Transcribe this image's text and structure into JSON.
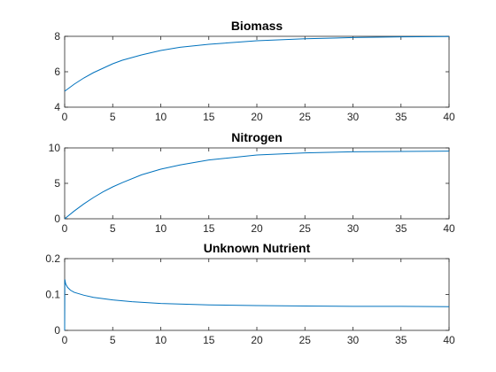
{
  "figure": {
    "background": "#ffffff",
    "axis_color": "#262626",
    "series_color": "#0072BD"
  },
  "chart_data": [
    {
      "type": "line",
      "title": "Biomass",
      "xlabel": "",
      "ylabel": "",
      "xlim": [
        0,
        40
      ],
      "ylim": [
        4,
        8
      ],
      "xticks": [
        0,
        5,
        10,
        15,
        20,
        25,
        30,
        35,
        40
      ],
      "xtick_labels": [
        "0",
        "5",
        "10",
        "15",
        "20",
        "25",
        "30",
        "35",
        "40"
      ],
      "yticks": [
        4,
        6,
        8
      ],
      "ytick_labels": [
        "4",
        "6",
        "8"
      ],
      "grid": false,
      "series": [
        {
          "x": [
            0,
            1,
            2,
            3,
            4,
            5,
            6,
            8,
            10,
            12,
            15,
            20,
            25,
            30,
            35,
            40
          ],
          "y": [
            4.9,
            5.3,
            5.65,
            5.95,
            6.2,
            6.45,
            6.65,
            6.95,
            7.2,
            7.38,
            7.55,
            7.75,
            7.86,
            7.93,
            7.97,
            7.99
          ]
        }
      ]
    },
    {
      "type": "line",
      "title": "Nitrogen",
      "xlabel": "",
      "ylabel": "",
      "xlim": [
        0,
        40
      ],
      "ylim": [
        0,
        10
      ],
      "xticks": [
        0,
        5,
        10,
        15,
        20,
        25,
        30,
        35,
        40
      ],
      "xtick_labels": [
        "0",
        "5",
        "10",
        "15",
        "20",
        "25",
        "30",
        "35",
        "40"
      ],
      "yticks": [
        0,
        5,
        10
      ],
      "ytick_labels": [
        "0",
        "5",
        "10"
      ],
      "grid": false,
      "series": [
        {
          "x": [
            0,
            1,
            2,
            3,
            4,
            5,
            6,
            8,
            10,
            12,
            15,
            20,
            25,
            30,
            35,
            40
          ],
          "y": [
            0,
            1.1,
            2.1,
            3.0,
            3.8,
            4.5,
            5.1,
            6.2,
            7.0,
            7.6,
            8.3,
            9.0,
            9.3,
            9.45,
            9.5,
            9.55
          ]
        }
      ]
    },
    {
      "type": "line",
      "title": "Unknown Nutrient",
      "xlabel": "",
      "ylabel": "",
      "xlim": [
        0,
        40
      ],
      "ylim": [
        0,
        0.2
      ],
      "xticks": [
        0,
        5,
        10,
        15,
        20,
        25,
        30,
        35,
        40
      ],
      "xtick_labels": [
        "0",
        "5",
        "10",
        "15",
        "20",
        "25",
        "30",
        "35",
        "40"
      ],
      "yticks": [
        0,
        0.1,
        0.2
      ],
      "ytick_labels": [
        "0",
        "0.1",
        "0.2"
      ],
      "grid": false,
      "series": [
        {
          "x": [
            0,
            0.02,
            0.1,
            0.3,
            0.6,
            1,
            2,
            3,
            5,
            7,
            10,
            15,
            20,
            25,
            30,
            35,
            40
          ],
          "y": [
            0,
            0.142,
            0.13,
            0.12,
            0.112,
            0.106,
            0.098,
            0.092,
            0.085,
            0.08,
            0.075,
            0.071,
            0.069,
            0.068,
            0.067,
            0.067,
            0.066
          ]
        }
      ]
    }
  ]
}
